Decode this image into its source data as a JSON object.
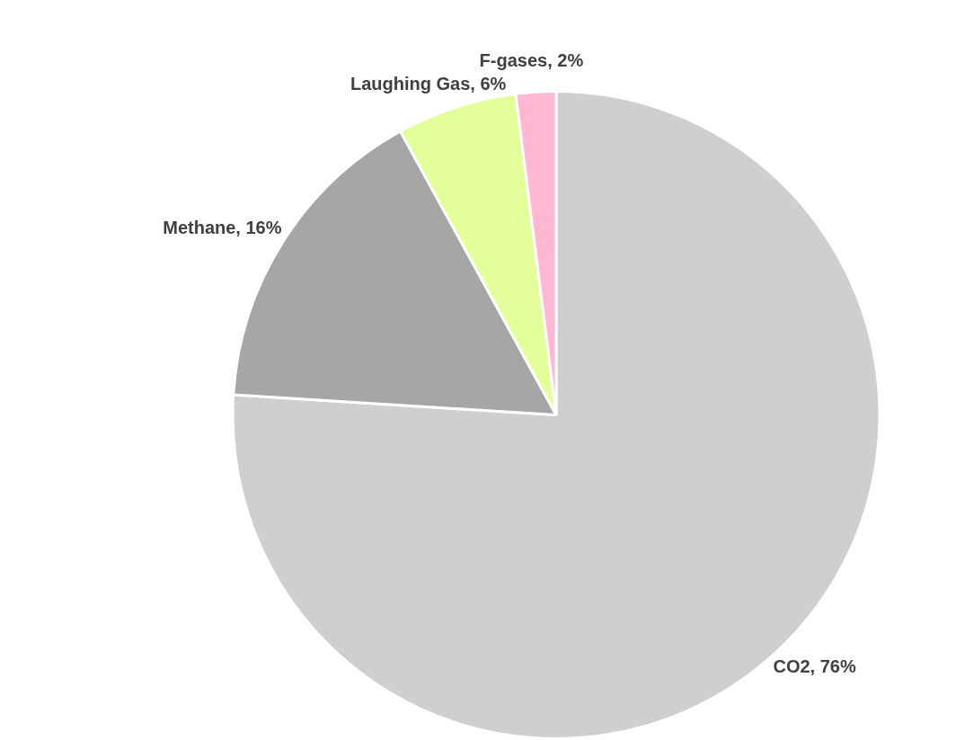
{
  "chart_data": {
    "type": "pie",
    "categories": [
      "CO2",
      "Methane",
      "Laughing Gas",
      "F-gases"
    ],
    "values": [
      76,
      16,
      6,
      2
    ],
    "colors": [
      "#d0cece",
      "#a6a6a6",
      "#e2ff9a",
      "#ffb7d2"
    ],
    "value_labels": [
      ", 76%",
      ", 16%",
      ", 6%",
      ", 2%"
    ],
    "legend": false
  }
}
